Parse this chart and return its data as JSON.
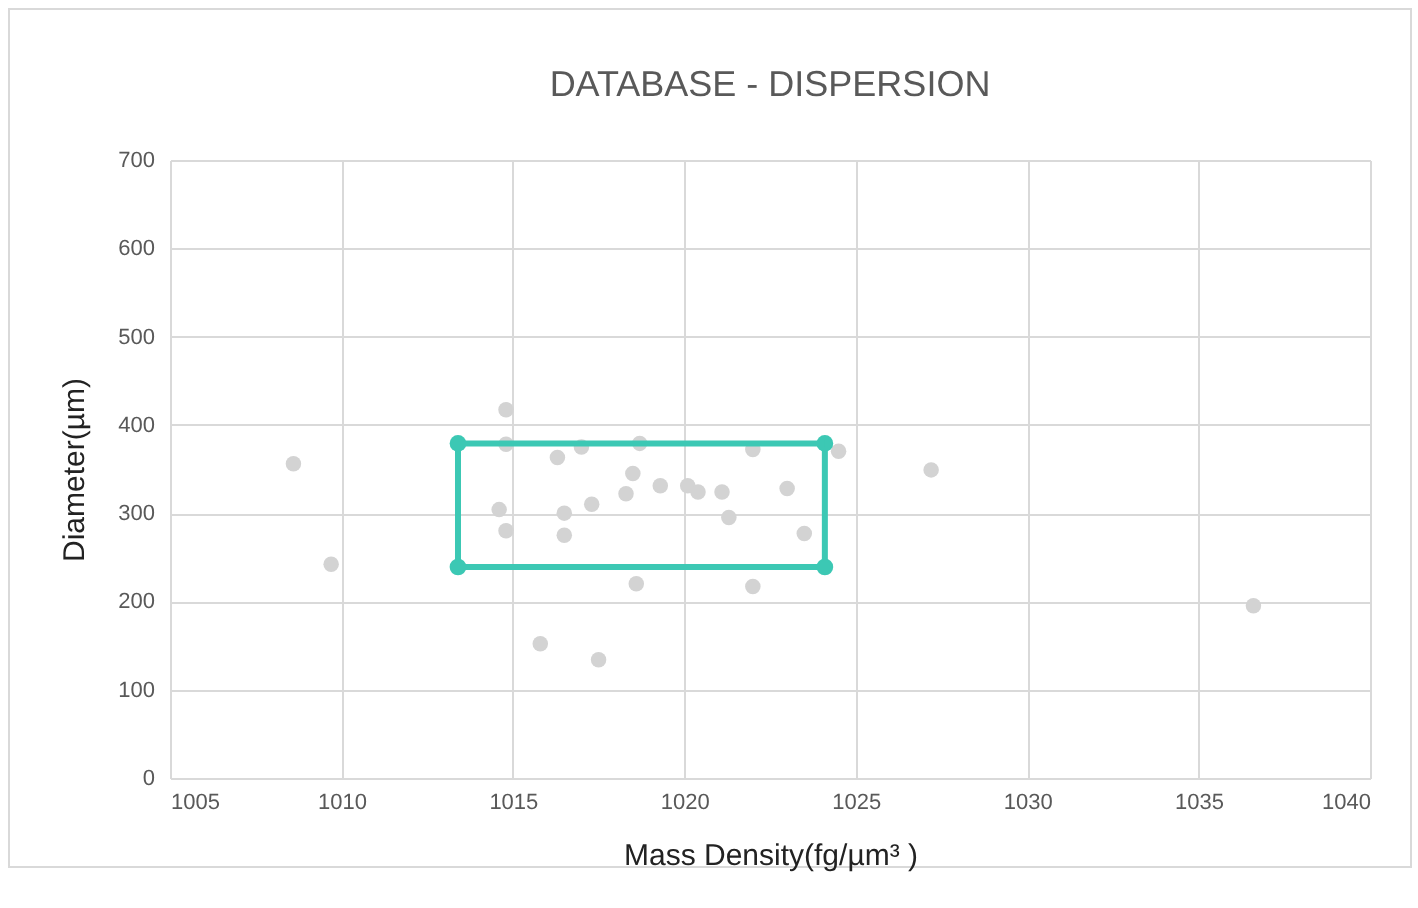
{
  "chart_data": {
    "type": "scatter",
    "title": "DATABASE - DISPERSION",
    "xlabel": "Mass Density(fg/µm³ )",
    "ylabel": "Diameter(µm)",
    "xlim": [
      1005,
      1040
    ],
    "xticks": [
      1005,
      1010,
      1015,
      1020,
      1025,
      1030,
      1035,
      1040
    ],
    "ylim": [
      0,
      700
    ],
    "yticks": [
      0,
      100,
      200,
      300,
      400,
      500,
      600,
      700
    ],
    "grid": true,
    "series": [
      {
        "color": "#d3d3d3",
        "x": [
          1008.6,
          1009.7,
          1014.8,
          1014.8,
          1016.3,
          1017.0,
          1014.6,
          1014.8,
          1016.5,
          1016.5,
          1017.3,
          1018.3,
          1018.5,
          1015.8,
          1017.5,
          1018.6,
          1018.7,
          1019.3,
          1020.1,
          1020.4,
          1021.1,
          1021.3,
          1022.0,
          1023.0,
          1023.5,
          1024.5,
          1022.0,
          1027.2,
          1036.6
        ],
        "values": [
          356,
          242,
          417,
          378,
          363,
          375,
          304,
          280,
          300,
          275,
          310,
          322,
          345,
          152,
          134,
          220,
          379,
          331,
          331,
          324,
          324,
          295,
          372,
          328,
          277,
          370,
          217,
          349,
          195
        ]
      },
      {
        "type": "line",
        "color": "#3cc8b4",
        "marker": "circle",
        "x": [
          1013.4,
          1013.4,
          1024.1,
          1024.1
        ],
        "values": [
          379,
          239,
          239,
          379
        ]
      },
      {
        "type": "line",
        "color": "#3cc8b4",
        "marker": "none",
        "x": [
          1013.4,
          1024.1
        ],
        "values": [
          379,
          379
        ]
      }
    ]
  }
}
